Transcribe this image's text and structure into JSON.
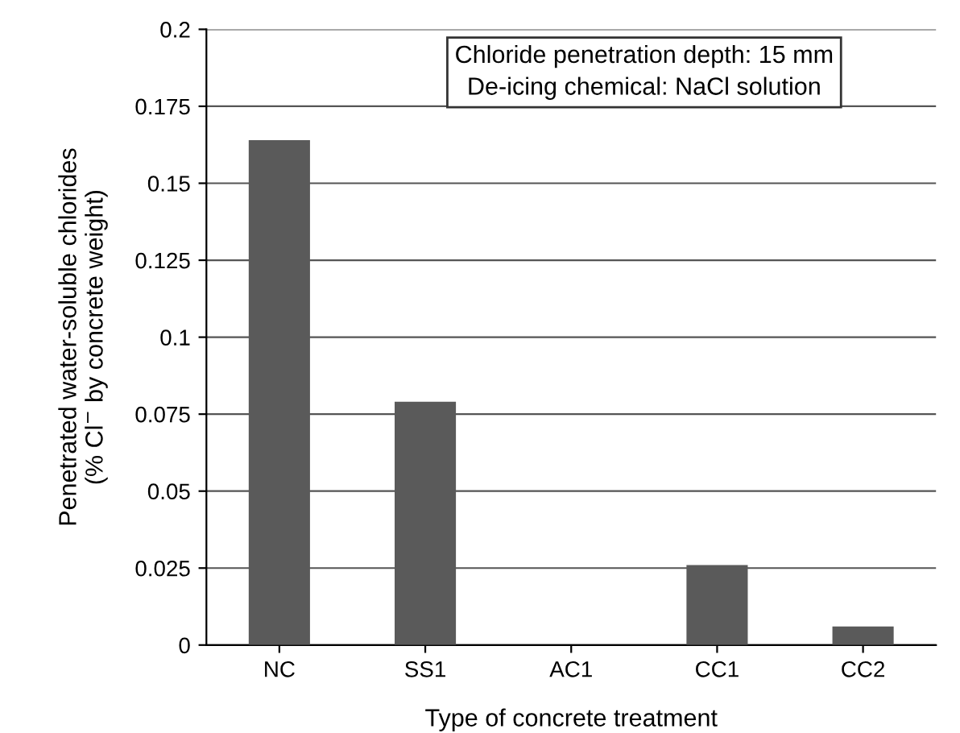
{
  "chart_data": {
    "type": "bar",
    "xlabel": "Type of concrete treatment",
    "ylabel": "Penetrated water-soluble chlorides\n(% Cl$^{−}$ by concrete weight)",
    "categories": [
      "NC",
      "SS1",
      "AC1",
      "CC1",
      "CC2"
    ],
    "values": [
      0.164,
      0.079,
      0,
      0.026,
      0.006
    ],
    "color": "#5a5a5a",
    "ylim": [
      0,
      0.2
    ],
    "yticks": [
      0,
      0.025,
      0.05,
      0.075,
      0.1,
      0.125,
      0.15,
      0.175,
      0.2
    ],
    "grid": "y",
    "annotations": [
      "Chloride penetration depth: 15 mm\nDe-icing chemical: NaCl solution"
    ]
  }
}
